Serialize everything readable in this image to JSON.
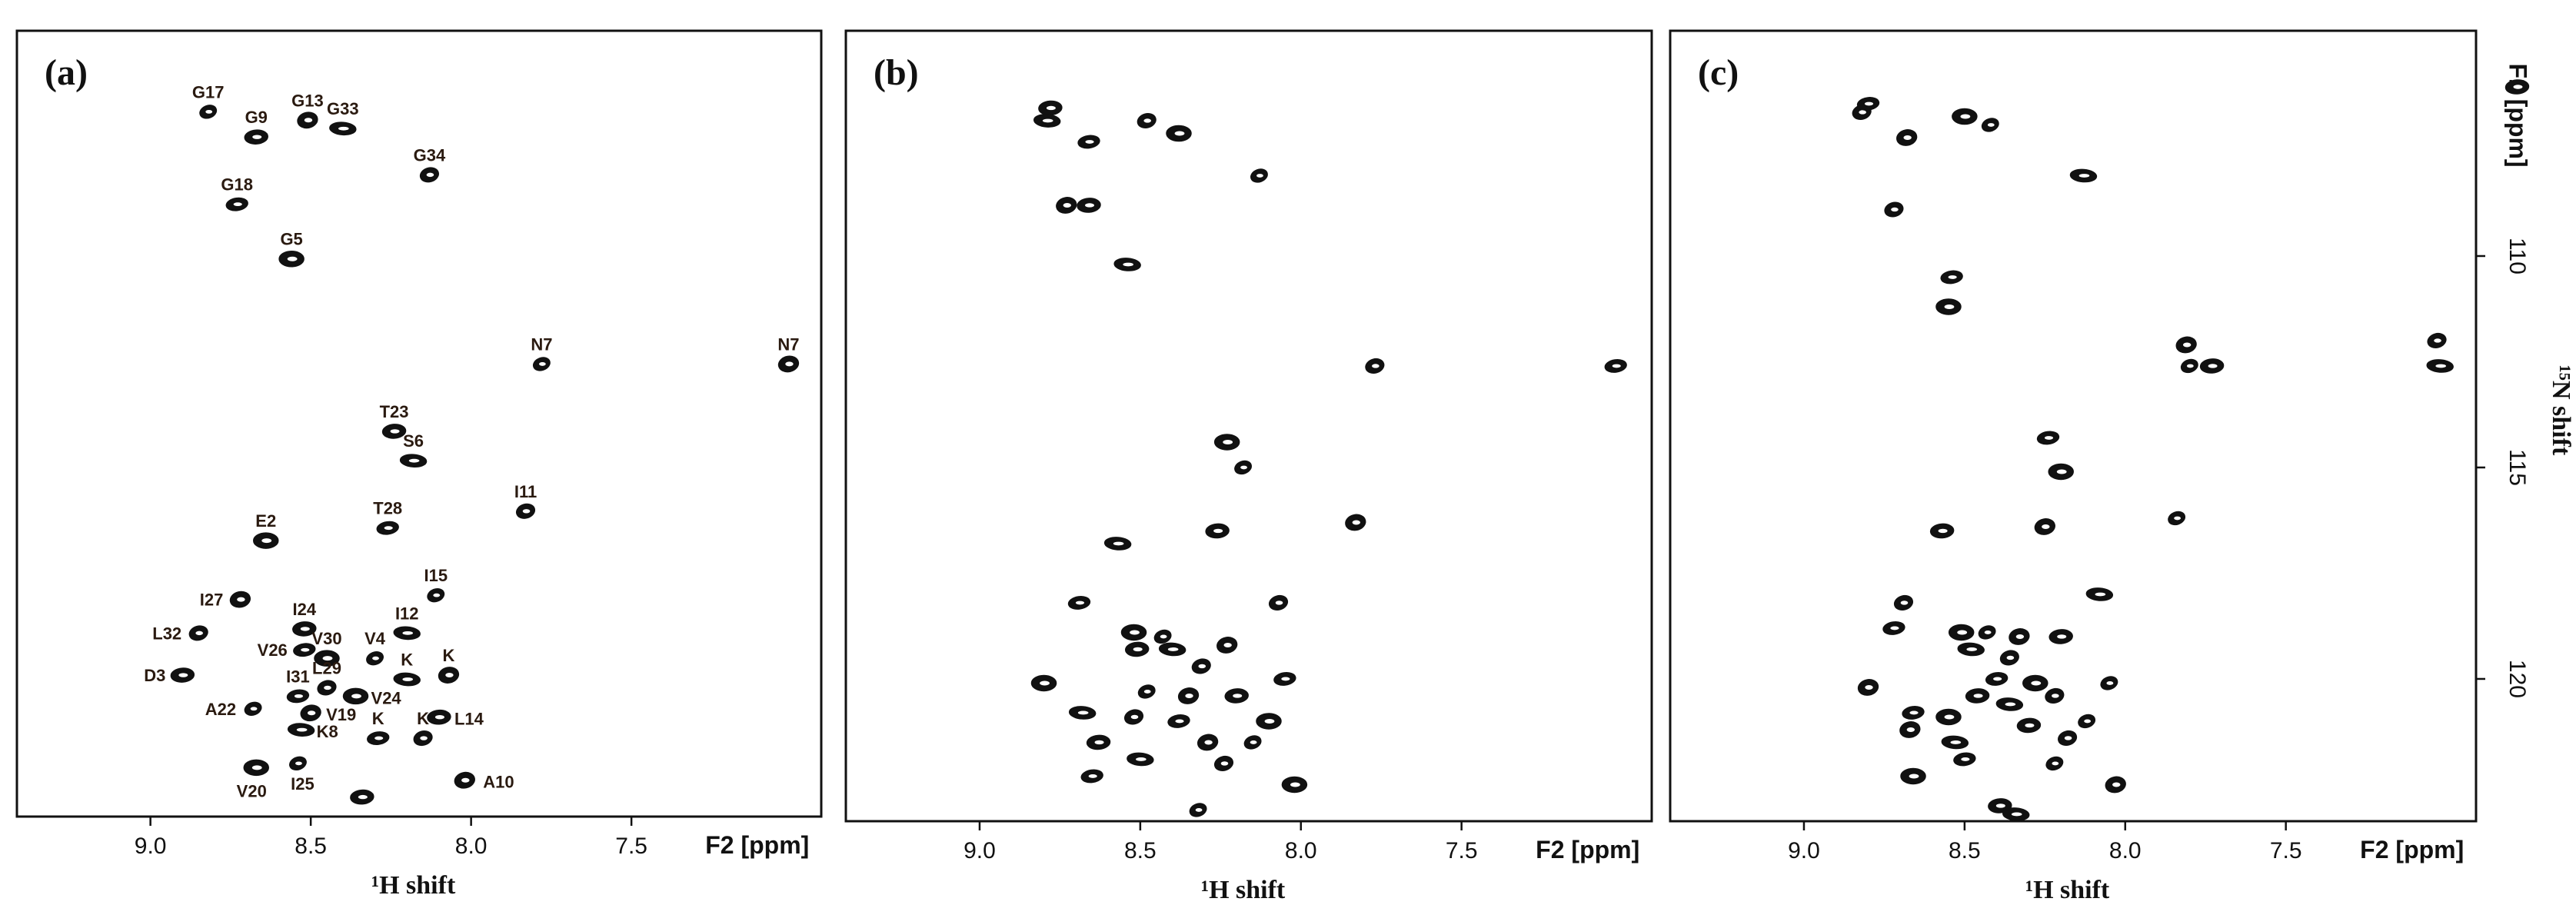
{
  "chart_data": [
    {
      "panel": "(a)",
      "type": "scatter",
      "xlabel_unit": "F2 [ppm]",
      "xlabel": "¹H shift",
      "xticks": [
        "9.0",
        "8.5",
        "8.0",
        "7.5"
      ],
      "xlim": [
        9.45,
        6.5
      ],
      "ylim": [
        105,
        124.8
      ],
      "points": [
        {
          "h": 8.82,
          "n": 106.6,
          "label": "G17"
        },
        {
          "h": 8.51,
          "n": 106.8,
          "label": "G13"
        },
        {
          "h": 8.67,
          "n": 107.2,
          "label": "G9"
        },
        {
          "h": 8.4,
          "n": 107.0,
          "label": "G33"
        },
        {
          "h": 8.13,
          "n": 108.1,
          "label": "G34"
        },
        {
          "h": 8.73,
          "n": 108.8,
          "label": "G18"
        },
        {
          "h": 8.56,
          "n": 110.1,
          "label": "G5"
        },
        {
          "h": 7.78,
          "n": 112.6,
          "label": "N7"
        },
        {
          "h": 7.01,
          "n": 112.6,
          "label": "N7"
        },
        {
          "h": 8.24,
          "n": 114.2,
          "label": "T23"
        },
        {
          "h": 8.18,
          "n": 114.9,
          "label": "S6"
        },
        {
          "h": 7.83,
          "n": 116.1,
          "label": "I11"
        },
        {
          "h": 8.26,
          "n": 116.5,
          "label": "T28"
        },
        {
          "h": 8.64,
          "n": 116.8,
          "label": "E2"
        },
        {
          "h": 8.11,
          "n": 118.1,
          "label": "I15"
        },
        {
          "h": 8.72,
          "n": 118.2,
          "label": "I27"
        },
        {
          "h": 8.52,
          "n": 118.9,
          "label": "I24"
        },
        {
          "h": 8.2,
          "n": 119.0,
          "label": "I12"
        },
        {
          "h": 8.85,
          "n": 119.0,
          "label": "L32"
        },
        {
          "h": 8.52,
          "n": 119.4,
          "label": "V26"
        },
        {
          "h": 8.45,
          "n": 119.6,
          "label": "V30"
        },
        {
          "h": 8.3,
          "n": 119.6,
          "label": "V4"
        },
        {
          "h": 8.07,
          "n": 120.0,
          "label": "K"
        },
        {
          "h": 8.9,
          "n": 120.0,
          "label": "D3"
        },
        {
          "h": 8.2,
          "n": 120.1,
          "label": "K"
        },
        {
          "h": 8.45,
          "n": 120.3,
          "label": "L29"
        },
        {
          "h": 8.54,
          "n": 120.5,
          "label": "I31"
        },
        {
          "h": 8.36,
          "n": 120.5,
          "label": "V24"
        },
        {
          "h": 8.68,
          "n": 120.8,
          "label": "A22"
        },
        {
          "h": 8.5,
          "n": 120.9,
          "label": "V19"
        },
        {
          "h": 8.1,
          "n": 121.0,
          "label": "L14"
        },
        {
          "h": 8.53,
          "n": 121.3,
          "label": "K8"
        },
        {
          "h": 8.15,
          "n": 121.5,
          "label": "K"
        },
        {
          "h": 8.29,
          "n": 121.5,
          "label": "K"
        },
        {
          "h": 8.67,
          "n": 122.2,
          "label": "V20"
        },
        {
          "h": 8.54,
          "n": 122.1,
          "label": "I25"
        },
        {
          "h": 8.02,
          "n": 122.5,
          "label": "A10"
        },
        {
          "h": 8.34,
          "n": 122.9,
          "label": ""
        }
      ]
    },
    {
      "panel": "(b)",
      "type": "scatter",
      "xlabel_unit": "F2 [ppm]",
      "xlabel": "¹H shift",
      "xticks": [
        "9.0",
        "8.5",
        "8.0",
        "7.5"
      ],
      "xlim": [
        9.45,
        6.5
      ],
      "ylim": [
        105,
        124.8
      ],
      "points": [
        {
          "h": 8.78,
          "n": 106.5
        },
        {
          "h": 8.79,
          "n": 106.8
        },
        {
          "h": 8.48,
          "n": 106.8
        },
        {
          "h": 8.66,
          "n": 107.3
        },
        {
          "h": 8.38,
          "n": 107.1
        },
        {
          "h": 8.13,
          "n": 108.1
        },
        {
          "h": 8.73,
          "n": 108.8
        },
        {
          "h": 8.66,
          "n": 108.8
        },
        {
          "h": 8.54,
          "n": 110.2
        },
        {
          "h": 7.77,
          "n": 112.6
        },
        {
          "h": 7.02,
          "n": 112.6
        },
        {
          "h": 8.23,
          "n": 114.4
        },
        {
          "h": 8.18,
          "n": 115.0
        },
        {
          "h": 7.83,
          "n": 116.3
        },
        {
          "h": 8.26,
          "n": 116.5
        },
        {
          "h": 8.57,
          "n": 116.8
        },
        {
          "h": 8.07,
          "n": 118.2
        },
        {
          "h": 8.69,
          "n": 118.2
        },
        {
          "h": 8.52,
          "n": 118.9
        },
        {
          "h": 8.43,
          "n": 119.0
        },
        {
          "h": 8.23,
          "n": 119.2
        },
        {
          "h": 8.51,
          "n": 119.3
        },
        {
          "h": 8.4,
          "n": 119.3
        },
        {
          "h": 8.31,
          "n": 119.7
        },
        {
          "h": 8.05,
          "n": 120.0
        },
        {
          "h": 8.8,
          "n": 120.1
        },
        {
          "h": 8.48,
          "n": 120.3
        },
        {
          "h": 8.35,
          "n": 120.4
        },
        {
          "h": 8.2,
          "n": 120.4
        },
        {
          "h": 8.68,
          "n": 120.8
        },
        {
          "h": 8.52,
          "n": 120.9
        },
        {
          "h": 8.38,
          "n": 121.0
        },
        {
          "h": 8.1,
          "n": 121.0
        },
        {
          "h": 8.15,
          "n": 121.5
        },
        {
          "h": 8.29,
          "n": 121.5
        },
        {
          "h": 8.63,
          "n": 121.5
        },
        {
          "h": 8.5,
          "n": 121.9
        },
        {
          "h": 8.24,
          "n": 122.0
        },
        {
          "h": 8.65,
          "n": 122.3
        },
        {
          "h": 8.02,
          "n": 122.5
        },
        {
          "h": 8.32,
          "n": 123.1
        }
      ]
    },
    {
      "panel": "(c)",
      "type": "scatter",
      "xlabel_unit": "F2 [ppm]",
      "xlabel": "¹H shift",
      "ylabel_unit": "F1 [ppm]",
      "ylabel": "¹⁵N shift",
      "xticks": [
        "9.0",
        "8.5",
        "8.0",
        "7.5"
      ],
      "yticks": [
        "110",
        "115",
        "120"
      ],
      "xlim": [
        9.45,
        6.5
      ],
      "ylim": [
        105,
        124.8
      ],
      "points": [
        {
          "h": 8.82,
          "n": 106.6
        },
        {
          "h": 8.8,
          "n": 106.4
        },
        {
          "h": 8.5,
          "n": 106.7
        },
        {
          "h": 8.42,
          "n": 106.9
        },
        {
          "h": 8.68,
          "n": 107.2
        },
        {
          "h": 6.78,
          "n": 106.0
        },
        {
          "h": 8.13,
          "n": 108.1
        },
        {
          "h": 8.72,
          "n": 108.9
        },
        {
          "h": 8.54,
          "n": 110.5
        },
        {
          "h": 8.55,
          "n": 111.2
        },
        {
          "h": 7.8,
          "n": 112.6
        },
        {
          "h": 7.81,
          "n": 112.1
        },
        {
          "h": 7.73,
          "n": 112.6
        },
        {
          "h": 7.02,
          "n": 112.6
        },
        {
          "h": 7.03,
          "n": 112.0
        },
        {
          "h": 8.24,
          "n": 114.3
        },
        {
          "h": 8.2,
          "n": 115.1
        },
        {
          "h": 7.84,
          "n": 116.2
        },
        {
          "h": 8.25,
          "n": 116.4
        },
        {
          "h": 8.57,
          "n": 116.5
        },
        {
          "h": 8.08,
          "n": 118.0
        },
        {
          "h": 8.69,
          "n": 118.2
        },
        {
          "h": 8.72,
          "n": 118.8
        },
        {
          "h": 8.51,
          "n": 118.9
        },
        {
          "h": 8.43,
          "n": 118.9
        },
        {
          "h": 8.33,
          "n": 119.0
        },
        {
          "h": 8.2,
          "n": 119.0
        },
        {
          "h": 8.48,
          "n": 119.3
        },
        {
          "h": 8.36,
          "n": 119.5
        },
        {
          "h": 8.4,
          "n": 120.0
        },
        {
          "h": 8.28,
          "n": 120.1
        },
        {
          "h": 8.05,
          "n": 120.1
        },
        {
          "h": 8.8,
          "n": 120.2
        },
        {
          "h": 8.46,
          "n": 120.4
        },
        {
          "h": 8.36,
          "n": 120.6
        },
        {
          "h": 8.22,
          "n": 120.4
        },
        {
          "h": 8.66,
          "n": 120.8
        },
        {
          "h": 8.55,
          "n": 120.9
        },
        {
          "h": 8.12,
          "n": 121.0
        },
        {
          "h": 8.67,
          "n": 121.2
        },
        {
          "h": 8.3,
          "n": 121.1
        },
        {
          "h": 8.53,
          "n": 121.5
        },
        {
          "h": 8.18,
          "n": 121.4
        },
        {
          "h": 8.5,
          "n": 121.9
        },
        {
          "h": 8.66,
          "n": 122.3
        },
        {
          "h": 8.22,
          "n": 122.0
        },
        {
          "h": 8.03,
          "n": 122.5
        },
        {
          "h": 8.39,
          "n": 123.0
        },
        {
          "h": 8.34,
          "n": 123.2
        }
      ]
    }
  ]
}
